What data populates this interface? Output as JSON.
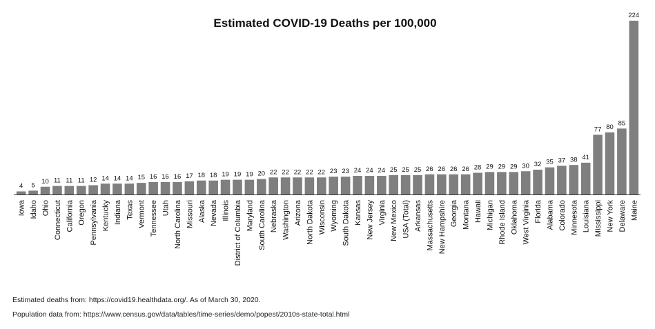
{
  "chart_data": {
    "type": "bar",
    "title": "Estimated COVID-19 Deaths per 100,000",
    "xlabel": "",
    "ylabel": "",
    "ylim": [
      0,
      224
    ],
    "grid": false,
    "categories": [
      "Iowa",
      "Idaho",
      "Ohio",
      "Connecticut",
      "California",
      "Oregon",
      "Pennsylvania",
      "Kentucky",
      "Indiana",
      "Texas",
      "Vermont",
      "Tennessee",
      "Utah",
      "North Carolina",
      "Missouri",
      "Alaska",
      "Nevada",
      "Illinois",
      "District of Columbia",
      "Maryland",
      "South Carolina",
      "Nebraska",
      "Washington",
      "Arizona",
      "North Dakota",
      "Wisconsin",
      "Wyoming",
      "South Dakota",
      "Kansas",
      "New Jersey",
      "Virginia",
      "New Mexico",
      "USA (Total)",
      "Arkansas",
      "Massachusetts",
      "New Hampshire",
      "Georgia",
      "Montana",
      "Hawaii",
      "Michigan",
      "Rhode Island",
      "Oklahoma",
      "West Virginia",
      "Florida",
      "Alabama",
      "Colorado",
      "Minnesota",
      "Louisiana",
      "Mississippi",
      "New York",
      "Delaware",
      "Maine"
    ],
    "values": [
      4,
      5,
      10,
      11,
      11,
      11,
      12,
      14,
      14,
      14,
      15,
      16,
      16,
      16,
      17,
      18,
      18,
      19,
      19,
      19,
      20,
      22,
      22,
      22,
      22,
      22,
      23,
      23,
      24,
      24,
      24,
      25,
      25,
      25,
      26,
      26,
      26,
      26,
      28,
      29,
      29,
      29,
      30,
      32,
      35,
      37,
      38,
      41,
      77,
      80,
      85,
      224
    ]
  },
  "notes": {
    "deaths_source": "Estimated deaths from: https://covid19.healthdata.org/. As of March 30, 2020.",
    "population_source": "Population data from: https://www.census.gov/data/tables/time-series/demo/popest/2010s-state-total.html"
  }
}
